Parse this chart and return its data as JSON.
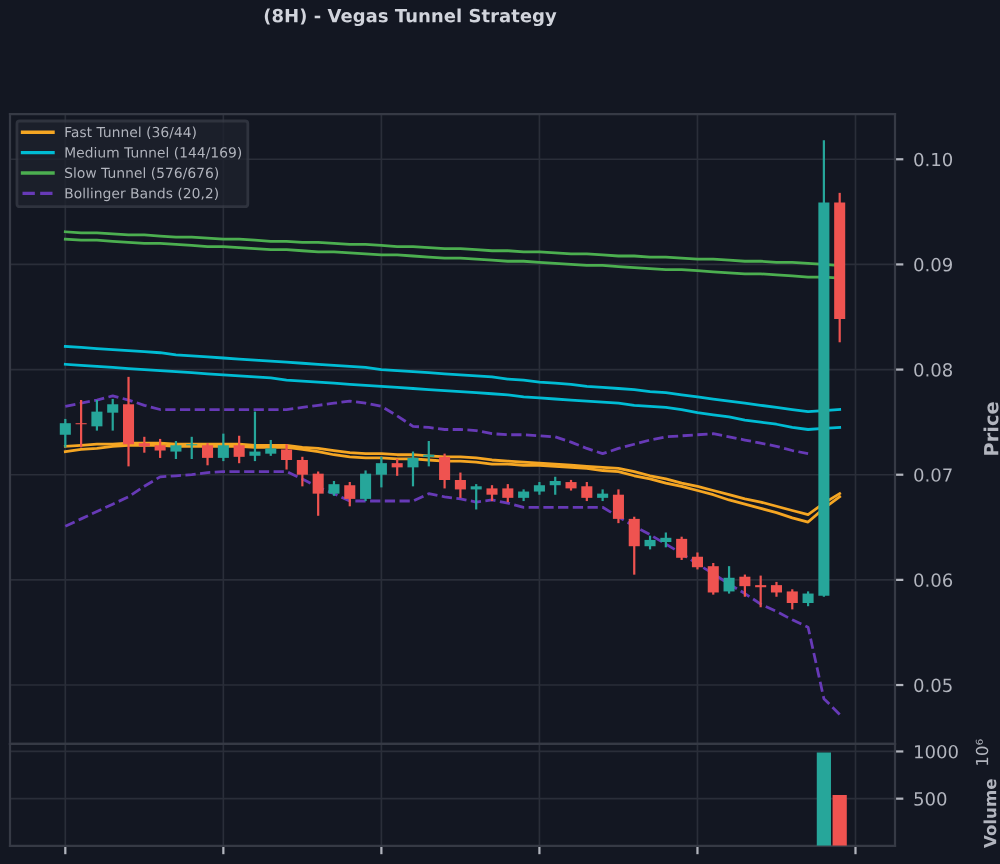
{
  "chart_data": [
    {
      "type": "candlestick",
      "title": "(8H) - Vegas Tunnel Strategy",
      "ylabel": "Price",
      "categories": [
        null,
        null,
        null,
        null,
        null,
        null,
        null,
        null,
        null,
        null,
        null,
        null,
        null,
        null,
        null,
        null,
        null,
        null,
        null,
        null,
        null,
        null,
        null,
        null,
        null,
        null,
        null,
        null,
        null,
        null,
        null,
        null,
        null,
        null,
        null,
        null,
        null,
        null,
        null,
        null,
        null,
        null,
        null,
        null,
        null,
        null,
        null,
        null,
        null,
        null
      ],
      "ohlc": [
        [
          0.0738,
          0.0752,
          0.0727,
          0.0749
        ],
        [
          0.0749,
          0.077,
          0.0727,
          0.0748
        ],
        [
          0.0746,
          0.077,
          0.0743,
          0.076
        ],
        [
          0.0759,
          0.0771,
          0.0743,
          0.0767
        ],
        [
          0.0767,
          0.0792,
          0.0709,
          0.0729
        ],
        [
          0.073,
          0.0735,
          0.0722,
          0.0727
        ],
        [
          0.0728,
          0.0733,
          0.0717,
          0.0723
        ],
        [
          0.0722,
          0.0731,
          0.0716,
          0.0728
        ],
        [
          0.0728,
          0.0735,
          0.0716,
          0.0729
        ],
        [
          0.0728,
          0.0729,
          0.071,
          0.0716
        ],
        [
          0.0716,
          0.0738,
          0.0714,
          0.0728
        ],
        [
          0.0728,
          0.0736,
          0.0712,
          0.0717
        ],
        [
          0.0718,
          0.0759,
          0.0714,
          0.0722
        ],
        [
          0.072,
          0.0732,
          0.0719,
          0.0725
        ],
        [
          0.0724,
          0.0728,
          0.0706,
          0.0714
        ],
        [
          0.0714,
          0.0716,
          0.069,
          0.07
        ],
        [
          0.0701,
          0.0702,
          0.0662,
          0.0682
        ],
        [
          0.0682,
          0.0693,
          0.0681,
          0.0691
        ],
        [
          0.069,
          0.0692,
          0.0671,
          0.0677
        ],
        [
          0.0677,
          0.0703,
          0.0676,
          0.0701
        ],
        [
          0.07,
          0.0716,
          0.0689,
          0.0711
        ],
        [
          0.0711,
          0.0714,
          0.07,
          0.0707
        ],
        [
          0.0707,
          0.0721,
          0.069,
          0.0716
        ],
        [
          0.0717,
          0.0731,
          0.0709,
          0.0719
        ],
        [
          0.0717,
          0.0719,
          0.0688,
          0.0695
        ],
        [
          0.0695,
          0.0701,
          0.0679,
          0.0686
        ],
        [
          0.0686,
          0.069,
          0.0668,
          0.0689
        ],
        [
          0.0687,
          0.0689,
          0.0676,
          0.0681
        ],
        [
          0.0687,
          0.069,
          0.0675,
          0.0678
        ],
        [
          0.0678,
          0.0685,
          0.0676,
          0.0684
        ],
        [
          0.0684,
          0.0692,
          0.0682,
          0.069
        ],
        [
          0.069,
          0.0697,
          0.0682,
          0.0694
        ],
        [
          0.0693,
          0.0694,
          0.0686,
          0.0687
        ],
        [
          0.0689,
          0.0692,
          0.0676,
          0.0678
        ],
        [
          0.0678,
          0.0685,
          0.0676,
          0.0682
        ],
        [
          0.0681,
          0.0685,
          0.0655,
          0.0658
        ],
        [
          0.0658,
          0.0659,
          0.0606,
          0.0632
        ],
        [
          0.0632,
          0.0641,
          0.063,
          0.0638
        ],
        [
          0.0636,
          0.0644,
          0.0632,
          0.064
        ],
        [
          0.0639,
          0.064,
          0.062,
          0.0621
        ],
        [
          0.0622,
          0.0625,
          0.0611,
          0.0612
        ],
        [
          0.0613,
          0.0615,
          0.0587,
          0.0588
        ],
        [
          0.0589,
          0.0612,
          0.0588,
          0.0602
        ],
        [
          0.0603,
          0.0604,
          0.0585,
          0.0594
        ],
        [
          0.0595,
          0.0603,
          0.0575,
          0.0593
        ],
        [
          0.0595,
          0.0597,
          0.0585,
          0.0588
        ],
        [
          0.0589,
          0.059,
          0.0573,
          0.0578
        ],
        [
          0.0578,
          0.0588,
          0.0576,
          0.0587
        ],
        [
          0.0585,
          0.1017,
          0.0585,
          0.0959
        ],
        [
          0.0959,
          0.0967,
          0.0827,
          0.0848
        ]
      ],
      "colors": [
        "#26a69a",
        "#ef5350",
        "#26a69a",
        "#26a69a",
        "#ef5350",
        "#ef5350",
        "#ef5350",
        "#26a69a",
        "#26a69a",
        "#ef5350",
        "#26a69a",
        "#ef5350",
        "#26a69a",
        "#26a69a",
        "#ef5350",
        "#ef5350",
        "#ef5350",
        "#26a69a",
        "#ef5350",
        "#26a69a",
        "#26a69a",
        "#ef5350",
        "#26a69a",
        "#26a69a",
        "#ef5350",
        "#ef5350",
        "#26a69a",
        "#ef5350",
        "#ef5350",
        "#26a69a",
        "#26a69a",
        "#26a69a",
        "#ef5350",
        "#ef5350",
        "#26a69a",
        "#ef5350",
        "#ef5350",
        "#26a69a",
        "#26a69a",
        "#ef5350",
        "#ef5350",
        "#ef5350",
        "#26a69a",
        "#ef5350",
        "#ef5350",
        "#ef5350",
        "#ef5350",
        "#26a69a",
        "#26a69a",
        "#ef5350"
      ],
      "series": [
        {
          "type": "line",
          "name": "Fast Tunnel (36/44)",
          "color": "#f5a623",
          "values": [
            0.0727,
            0.0728,
            0.0729,
            0.0729,
            0.073,
            0.073,
            0.073,
            0.0729,
            0.0729,
            0.0729,
            0.0729,
            0.0729,
            0.0728,
            0.0728,
            0.0728,
            0.0726,
            0.0725,
            0.0723,
            0.0721,
            0.072,
            0.072,
            0.0719,
            0.0719,
            0.0718,
            0.0717,
            0.0717,
            0.0716,
            0.0714,
            0.0713,
            0.0712,
            0.0711,
            0.071,
            0.0709,
            0.0708,
            0.0707,
            0.0706,
            0.0703,
            0.0699,
            0.0696,
            0.0692,
            0.0689,
            0.0685,
            0.0681,
            0.0677,
            0.0674,
            0.067,
            0.0666,
            0.0662,
            0.0673,
            0.0682
          ]
        },
        {
          "type": "line",
          "color": "#f5a623",
          "values": [
            0.0722,
            0.0724,
            0.0725,
            0.0727,
            0.0728,
            0.0728,
            0.0728,
            0.0727,
            0.0727,
            0.0727,
            0.0727,
            0.0727,
            0.0726,
            0.0726,
            0.0726,
            0.0724,
            0.0722,
            0.0719,
            0.0717,
            0.0716,
            0.0716,
            0.0715,
            0.0715,
            0.0714,
            0.0713,
            0.0713,
            0.0712,
            0.071,
            0.071,
            0.0709,
            0.0709,
            0.0708,
            0.0707,
            0.0706,
            0.0704,
            0.0703,
            0.0699,
            0.0696,
            0.0692,
            0.0689,
            0.0685,
            0.0681,
            0.0676,
            0.0672,
            0.0668,
            0.0664,
            0.0659,
            0.0655,
            0.0668,
            0.0679
          ]
        },
        {
          "type": "line",
          "name": "Medium Tunnel (144/169)",
          "color": "#00bcd4",
          "values": [
            0.0822,
            0.0821,
            0.082,
            0.0819,
            0.0818,
            0.0817,
            0.0816,
            0.0814,
            0.0813,
            0.0812,
            0.0811,
            0.081,
            0.0809,
            0.0808,
            0.0807,
            0.0806,
            0.0805,
            0.0804,
            0.0803,
            0.0802,
            0.08,
            0.0799,
            0.0798,
            0.0797,
            0.0796,
            0.0795,
            0.0794,
            0.0793,
            0.0791,
            0.079,
            0.0788,
            0.0787,
            0.0786,
            0.0784,
            0.0783,
            0.0782,
            0.0781,
            0.0779,
            0.0778,
            0.0776,
            0.0774,
            0.0772,
            0.077,
            0.0768,
            0.0766,
            0.0764,
            0.0762,
            0.076,
            0.0761,
            0.0762
          ]
        },
        {
          "type": "line",
          "color": "#00bcd4",
          "values": [
            0.0805,
            0.0804,
            0.0803,
            0.0802,
            0.0801,
            0.08,
            0.0799,
            0.0798,
            0.0797,
            0.0796,
            0.0795,
            0.0794,
            0.0793,
            0.0792,
            0.079,
            0.0789,
            0.0788,
            0.0787,
            0.0786,
            0.0785,
            0.0784,
            0.0783,
            0.0782,
            0.0781,
            0.078,
            0.0779,
            0.0778,
            0.0777,
            0.0776,
            0.0774,
            0.0773,
            0.0772,
            0.0771,
            0.077,
            0.0769,
            0.0768,
            0.0766,
            0.0765,
            0.0764,
            0.0762,
            0.0759,
            0.0757,
            0.0755,
            0.0752,
            0.075,
            0.0748,
            0.0745,
            0.0743,
            0.0744,
            0.0745
          ]
        },
        {
          "type": "line",
          "name": "Slow Tunnel (576/676)",
          "color": "#4caf50",
          "values": [
            0.0931,
            0.093,
            0.093,
            0.0929,
            0.0928,
            0.0928,
            0.0927,
            0.0926,
            0.0926,
            0.0925,
            0.0924,
            0.0924,
            0.0923,
            0.0922,
            0.0922,
            0.0921,
            0.0921,
            0.092,
            0.0919,
            0.0919,
            0.0918,
            0.0917,
            0.0917,
            0.0916,
            0.0915,
            0.0915,
            0.0914,
            0.0913,
            0.0913,
            0.0912,
            0.0912,
            0.0911,
            0.091,
            0.091,
            0.0909,
            0.0908,
            0.0908,
            0.0907,
            0.0907,
            0.0906,
            0.0905,
            0.0905,
            0.0904,
            0.0903,
            0.0903,
            0.0902,
            0.0902,
            0.0901,
            0.09,
            0.0899
          ]
        },
        {
          "type": "line",
          "color": "#4caf50",
          "values": [
            0.0924,
            0.0923,
            0.0923,
            0.0922,
            0.0921,
            0.092,
            0.092,
            0.0919,
            0.0918,
            0.0917,
            0.0917,
            0.0916,
            0.0915,
            0.0914,
            0.0914,
            0.0913,
            0.0912,
            0.0912,
            0.0911,
            0.091,
            0.0909,
            0.0909,
            0.0908,
            0.0907,
            0.0906,
            0.0906,
            0.0905,
            0.0904,
            0.0903,
            0.0903,
            0.0902,
            0.0901,
            0.09,
            0.0899,
            0.0899,
            0.0898,
            0.0897,
            0.0896,
            0.0895,
            0.0895,
            0.0894,
            0.0893,
            0.0892,
            0.0891,
            0.0891,
            0.089,
            0.0889,
            0.0888,
            0.0888,
            0.0887
          ]
        },
        {
          "type": "line",
          "name": "Bollinger Bands (20,2)",
          "color": "#673ab7",
          "line_style": "dashed",
          "values": [
            0.0765,
            0.0768,
            0.0771,
            0.0775,
            0.0771,
            0.0766,
            0.0762,
            0.0762,
            0.0762,
            0.0762,
            0.0762,
            0.0762,
            0.0762,
            0.0762,
            0.0762,
            0.0764,
            0.0766,
            0.0768,
            0.077,
            0.0768,
            0.0765,
            0.0756,
            0.0746,
            0.0745,
            0.0743,
            0.0743,
            0.0742,
            0.0739,
            0.0738,
            0.0738,
            0.0737,
            0.0736,
            0.0731,
            0.0725,
            0.072,
            0.0725,
            0.0729,
            0.0733,
            0.0736,
            0.0737,
            0.0738,
            0.0739,
            0.0736,
            0.0733,
            0.073,
            0.0727,
            0.0723,
            0.072,
            null,
            null
          ]
        },
        {
          "type": "line",
          "color": "#673ab7",
          "line_style": "dashed",
          "values": [
            0.0651,
            0.0658,
            0.0665,
            0.0672,
            0.0679,
            0.0689,
            0.0698,
            0.0699,
            0.07,
            0.0702,
            0.0703,
            0.0703,
            0.0703,
            0.0703,
            0.0703,
            0.0696,
            0.0688,
            0.0682,
            0.0675,
            0.0675,
            0.0675,
            0.0675,
            0.0675,
            0.0682,
            0.0679,
            0.0677,
            0.0674,
            0.0676,
            0.0673,
            0.0669,
            0.0669,
            0.0669,
            0.0669,
            0.0669,
            0.0669,
            0.066,
            0.0651,
            0.0643,
            0.0634,
            0.0625,
            0.0615,
            0.0606,
            0.0596,
            0.0587,
            0.0577,
            0.057,
            0.0562,
            0.0555,
            0.0487,
            0.0472
          ]
        }
      ],
      "ylim": [
        0.0444,
        0.1043
      ],
      "yticks": [
        {
          "value": 0.05,
          "label": "0.05"
        },
        {
          "value": 0.06,
          "label": "0.06"
        },
        {
          "value": 0.07,
          "label": "0.07"
        },
        {
          "value": 0.08,
          "label": "0.08"
        },
        {
          "value": 0.09,
          "label": "0.09"
        },
        {
          "value": 0.1,
          "label": "0.10"
        }
      ],
      "tick_labels": "y",
      "grid": true,
      "legend": "top left"
    },
    {
      "type": "bar",
      "ylabel": "Volume",
      "annotations": [
        "10⁶"
      ],
      "categories": [
        null,
        null,
        null,
        null,
        null,
        null,
        null,
        null,
        null,
        null,
        null,
        null,
        null,
        null,
        null,
        null,
        null,
        null,
        null,
        null,
        null,
        null,
        null,
        null,
        null,
        null,
        null,
        null,
        null,
        null,
        null,
        null,
        null,
        null,
        null,
        null,
        null,
        null,
        null,
        null,
        null,
        null,
        null,
        null,
        null,
        null,
        null,
        null,
        null,
        null
      ],
      "values": [
        0,
        0,
        0,
        0,
        0,
        0,
        0,
        0,
        0,
        0,
        0,
        0,
        0,
        0,
        0,
        0,
        0,
        0,
        0,
        0,
        0,
        0,
        0,
        0,
        0,
        0,
        0,
        0,
        0,
        0,
        0,
        0,
        0,
        0,
        0,
        0,
        0,
        0,
        0,
        0,
        0,
        0,
        0,
        0,
        0,
        0,
        0,
        0,
        990,
        540
      ],
      "colors": [
        "#26a69a",
        "#ef5350",
        "#26a69a",
        "#26a69a",
        "#ef5350",
        "#ef5350",
        "#ef5350",
        "#26a69a",
        "#26a69a",
        "#ef5350",
        "#26a69a",
        "#ef5350",
        "#26a69a",
        "#26a69a",
        "#ef5350",
        "#ef5350",
        "#ef5350",
        "#26a69a",
        "#ef5350",
        "#26a69a",
        "#26a69a",
        "#ef5350",
        "#26a69a",
        "#26a69a",
        "#ef5350",
        "#ef5350",
        "#26a69a",
        "#ef5350",
        "#ef5350",
        "#26a69a",
        "#26a69a",
        "#26a69a",
        "#ef5350",
        "#ef5350",
        "#26a69a",
        "#ef5350",
        "#ef5350",
        "#26a69a",
        "#26a69a",
        "#ef5350",
        "#ef5350",
        "#ef5350",
        "#26a69a",
        "#ef5350",
        "#ef5350",
        "#ef5350",
        "#ef5350",
        "#26a69a",
        "#26a69a",
        "#ef5350"
      ],
      "ylim": [
        0,
        1080
      ],
      "yticks": [
        500,
        1000
      ],
      "tick_labels": "y",
      "grid": true
    }
  ]
}
